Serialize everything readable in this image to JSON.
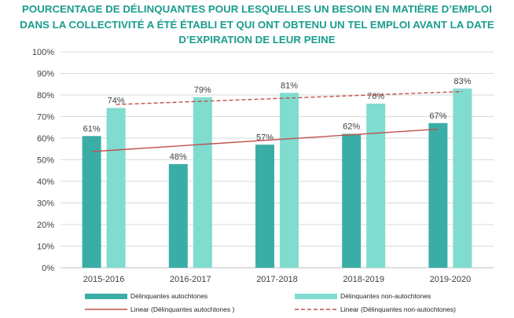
{
  "chart_data": {
    "type": "bar",
    "title_lines": [
      "POURCENTAGE DE DÉLINQUANTES POUR LESQUELLES UN BESOIN EN MATIÈRE D’EMPLOI",
      "DANS LA COLLECTIVITÉ A ÉTÉ ÉTABLI ET QUI ONT OBTENU UN TEL EMPLOI AVANT LA DATE",
      "D’EXPIRATION DE LEUR PEINE"
    ],
    "categories": [
      "2015-2016",
      "2016-2017",
      "2017-2018",
      "2018-2019",
      "2019-2020"
    ],
    "series": [
      {
        "name": "Délinquantes autochtones",
        "values": [
          61,
          48,
          57,
          62,
          67
        ],
        "labels": [
          "61%",
          "48%",
          "57%",
          "62%",
          "67%"
        ],
        "color": "#3aaea6"
      },
      {
        "name": "Délinquantes non-autochtones",
        "values": [
          74,
          79,
          81,
          76,
          83
        ],
        "labels": [
          "74%",
          "79%",
          "81%",
          "76%",
          "83%"
        ],
        "color": "#7fdccf"
      }
    ],
    "trendlines": [
      {
        "name": "Linear (Délinquantes autochtones )",
        "series_index": 0,
        "color": "#c0504d",
        "style": "solid"
      },
      {
        "name": "Linear (Délinquantes non-autochtones)",
        "series_index": 1,
        "color": "#c0504d",
        "style": "dashed"
      }
    ],
    "yticks": [
      0,
      10,
      20,
      30,
      40,
      50,
      60,
      70,
      80,
      90,
      100
    ],
    "ytick_labels": [
      "0%",
      "10%",
      "20%",
      "30%",
      "40%",
      "50%",
      "60%",
      "70%",
      "80%",
      "90%",
      "100%"
    ],
    "ylim": [
      0,
      100
    ],
    "grid": true,
    "legend_position": "bottom"
  }
}
